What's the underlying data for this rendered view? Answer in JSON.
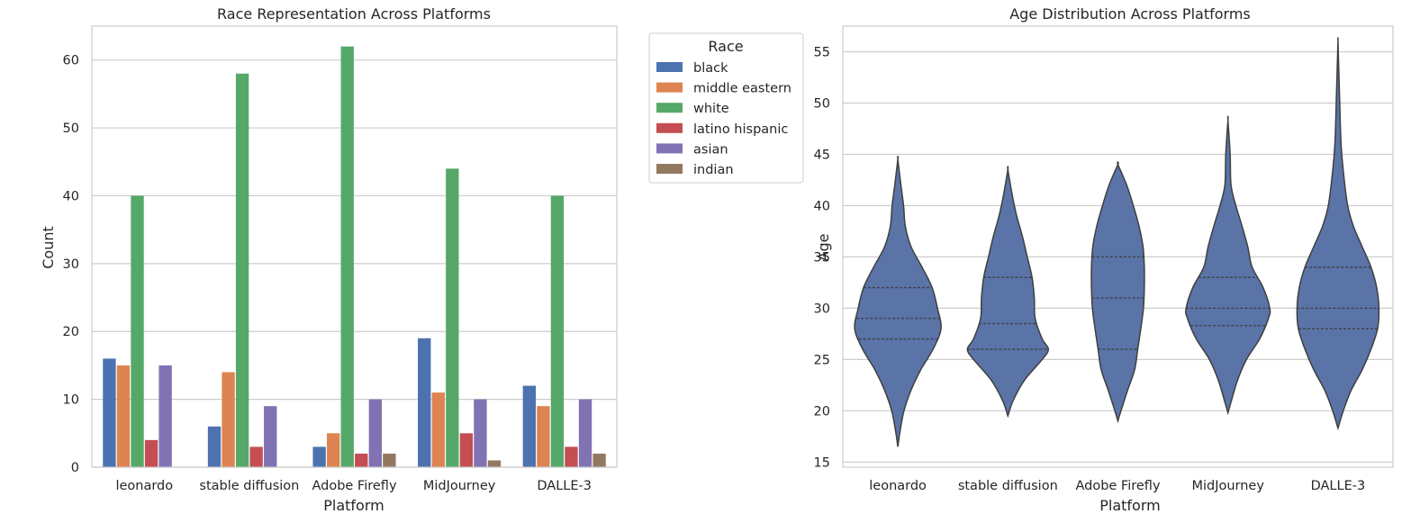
{
  "chart_data": [
    {
      "type": "bar",
      "title": "Race Representation Across Platforms",
      "xlabel": "Platform",
      "ylabel": "Count",
      "ylim": [
        0,
        65
      ],
      "yticks": [
        0,
        10,
        20,
        30,
        40,
        50,
        60
      ],
      "categories": [
        "leonardo",
        "stable diffusion",
        "Adobe Firefly",
        "MidJourney",
        "DALLE-3"
      ],
      "legend_title": "Race",
      "legend_position": "outside-top-right",
      "grid": true,
      "series": [
        {
          "name": "black",
          "color": "#4c72b0",
          "values": [
            16,
            6,
            3,
            19,
            12
          ]
        },
        {
          "name": "middle eastern",
          "color": "#dd8452",
          "values": [
            15,
            14,
            5,
            11,
            9
          ]
        },
        {
          "name": "white",
          "color": "#55a868",
          "values": [
            40,
            58,
            62,
            44,
            40
          ]
        },
        {
          "name": "latino hispanic",
          "color": "#c44e52",
          "values": [
            4,
            3,
            2,
            5,
            3
          ]
        },
        {
          "name": "asian",
          "color": "#8172b3",
          "values": [
            15,
            9,
            10,
            10,
            10
          ]
        },
        {
          "name": "indian",
          "color": "#937860",
          "values": [
            0,
            0,
            2,
            1,
            2
          ]
        }
      ]
    },
    {
      "type": "violin",
      "title": "Age Distribution Across Platforms",
      "xlabel": "Platform",
      "ylabel": "Age",
      "ylim": [
        14.5,
        57.5
      ],
      "yticks": [
        15,
        20,
        25,
        30,
        35,
        40,
        45,
        50,
        55
      ],
      "categories": [
        "leonardo",
        "stable diffusion",
        "Adobe Firefly",
        "MidJourney",
        "DALLE-3"
      ],
      "color": "#5a74a8",
      "grid": true,
      "series": [
        {
          "name": "leonardo",
          "min": 16.5,
          "q1": 27,
          "median": 29,
          "q3": 32,
          "max": 44.5,
          "density": [
            [
              16.5,
              0
            ],
            [
              18,
              0.05
            ],
            [
              20,
              0.14
            ],
            [
              22,
              0.3
            ],
            [
              24,
              0.52
            ],
            [
              26,
              0.8
            ],
            [
              28,
              0.98
            ],
            [
              30,
              0.9
            ],
            [
              32,
              0.78
            ],
            [
              34,
              0.55
            ],
            [
              36,
              0.3
            ],
            [
              38,
              0.17
            ],
            [
              40,
              0.13
            ],
            [
              42,
              0.07
            ],
            [
              44.5,
              0
            ]
          ]
        },
        {
          "name": "stable diffusion",
          "min": 19.5,
          "q1": 26,
          "median": 28.5,
          "q3": 33,
          "max": 43.5,
          "density": [
            [
              19.5,
              0
            ],
            [
              21,
              0.12
            ],
            [
              23,
              0.38
            ],
            [
              25,
              0.78
            ],
            [
              26,
              0.92
            ],
            [
              27,
              0.78
            ],
            [
              29,
              0.62
            ],
            [
              31,
              0.6
            ],
            [
              33,
              0.55
            ],
            [
              35,
              0.44
            ],
            [
              37,
              0.33
            ],
            [
              39,
              0.2
            ],
            [
              41,
              0.1
            ],
            [
              43.5,
              0
            ]
          ]
        },
        {
          "name": "Adobe Firefly",
          "min": 19,
          "q1": 26,
          "median": 31,
          "q3": 35,
          "max": 44,
          "density": [
            [
              19,
              0
            ],
            [
              20,
              0.07
            ],
            [
              22,
              0.22
            ],
            [
              24,
              0.38
            ],
            [
              26,
              0.45
            ],
            [
              28,
              0.52
            ],
            [
              30,
              0.58
            ],
            [
              32,
              0.6
            ],
            [
              34,
              0.6
            ],
            [
              36,
              0.57
            ],
            [
              38,
              0.48
            ],
            [
              40,
              0.35
            ],
            [
              42,
              0.2
            ],
            [
              44,
              0
            ]
          ]
        },
        {
          "name": "MidJourney",
          "min": 19.8,
          "q1": 28.3,
          "median": 30,
          "q3": 33,
          "max": 48.3,
          "density": [
            [
              19.8,
              0
            ],
            [
              21,
              0.08
            ],
            [
              23,
              0.22
            ],
            [
              25,
              0.42
            ],
            [
              27,
              0.72
            ],
            [
              29,
              0.92
            ],
            [
              30,
              0.95
            ],
            [
              32,
              0.8
            ],
            [
              34,
              0.55
            ],
            [
              36,
              0.45
            ],
            [
              38,
              0.32
            ],
            [
              40,
              0.18
            ],
            [
              42,
              0.07
            ],
            [
              45,
              0.05
            ],
            [
              48.3,
              0
            ]
          ]
        },
        {
          "name": "DALLE-3",
          "min": 18.3,
          "q1": 28,
          "median": 30,
          "q3": 34,
          "max": 56,
          "density": [
            [
              18.3,
              0
            ],
            [
              20,
              0.12
            ],
            [
              22,
              0.3
            ],
            [
              24,
              0.55
            ],
            [
              26,
              0.75
            ],
            [
              28,
              0.9
            ],
            [
              30,
              0.93
            ],
            [
              32,
              0.88
            ],
            [
              34,
              0.75
            ],
            [
              36,
              0.55
            ],
            [
              38,
              0.35
            ],
            [
              40,
              0.22
            ],
            [
              43,
              0.13
            ],
            [
              46,
              0.07
            ],
            [
              50,
              0.04
            ],
            [
              53,
              0.02
            ],
            [
              56,
              0
            ]
          ]
        }
      ]
    }
  ]
}
